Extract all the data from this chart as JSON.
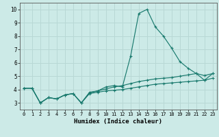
{
  "title": "",
  "xlabel": "Humidex (Indice chaleur)",
  "bg_color": "#cceae7",
  "grid_color": "#b8d8d5",
  "line_color": "#1a7a6e",
  "xlim": [
    -0.5,
    23.5
  ],
  "ylim": [
    2.5,
    10.5
  ],
  "yticks": [
    3,
    4,
    5,
    6,
    7,
    8,
    9,
    10
  ],
  "xticks": [
    0,
    1,
    2,
    3,
    4,
    5,
    6,
    7,
    8,
    9,
    10,
    11,
    12,
    13,
    14,
    15,
    16,
    17,
    18,
    19,
    20,
    21,
    22,
    23
  ],
  "series1": [
    4.1,
    4.1,
    3.0,
    3.4,
    3.3,
    3.6,
    3.7,
    3.0,
    3.8,
    3.9,
    4.2,
    4.3,
    4.2,
    6.5,
    9.7,
    10.0,
    8.7,
    8.0,
    7.1,
    6.1,
    5.6,
    5.2,
    4.7,
    5.2
  ],
  "series2": [
    4.1,
    4.1,
    3.0,
    3.4,
    3.3,
    3.6,
    3.7,
    3.0,
    3.75,
    3.9,
    4.05,
    4.2,
    4.3,
    4.45,
    4.6,
    4.7,
    4.8,
    4.85,
    4.9,
    5.0,
    5.1,
    5.2,
    5.05,
    5.2
  ],
  "series3": [
    4.1,
    4.1,
    3.0,
    3.4,
    3.3,
    3.6,
    3.7,
    3.0,
    3.7,
    3.8,
    3.9,
    3.95,
    4.0,
    4.1,
    4.2,
    4.3,
    4.4,
    4.45,
    4.5,
    4.55,
    4.6,
    4.65,
    4.7,
    4.85
  ]
}
